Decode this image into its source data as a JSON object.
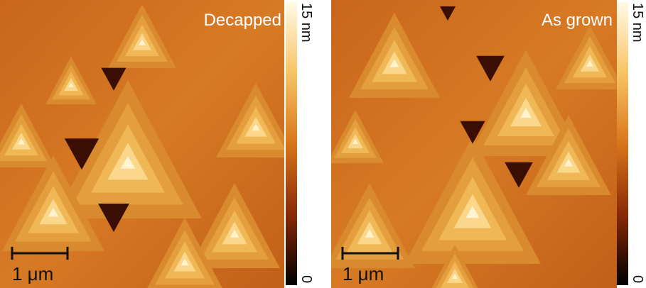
{
  "panels": [
    {
      "label": "Decapped",
      "scale_bar": "1 μm",
      "colorbar": {
        "max": "15 nm",
        "min": "0"
      }
    },
    {
      "label": "As grown",
      "scale_bar": "1 μm",
      "colorbar": {
        "max": "15 nm",
        "min": "0"
      }
    }
  ]
}
